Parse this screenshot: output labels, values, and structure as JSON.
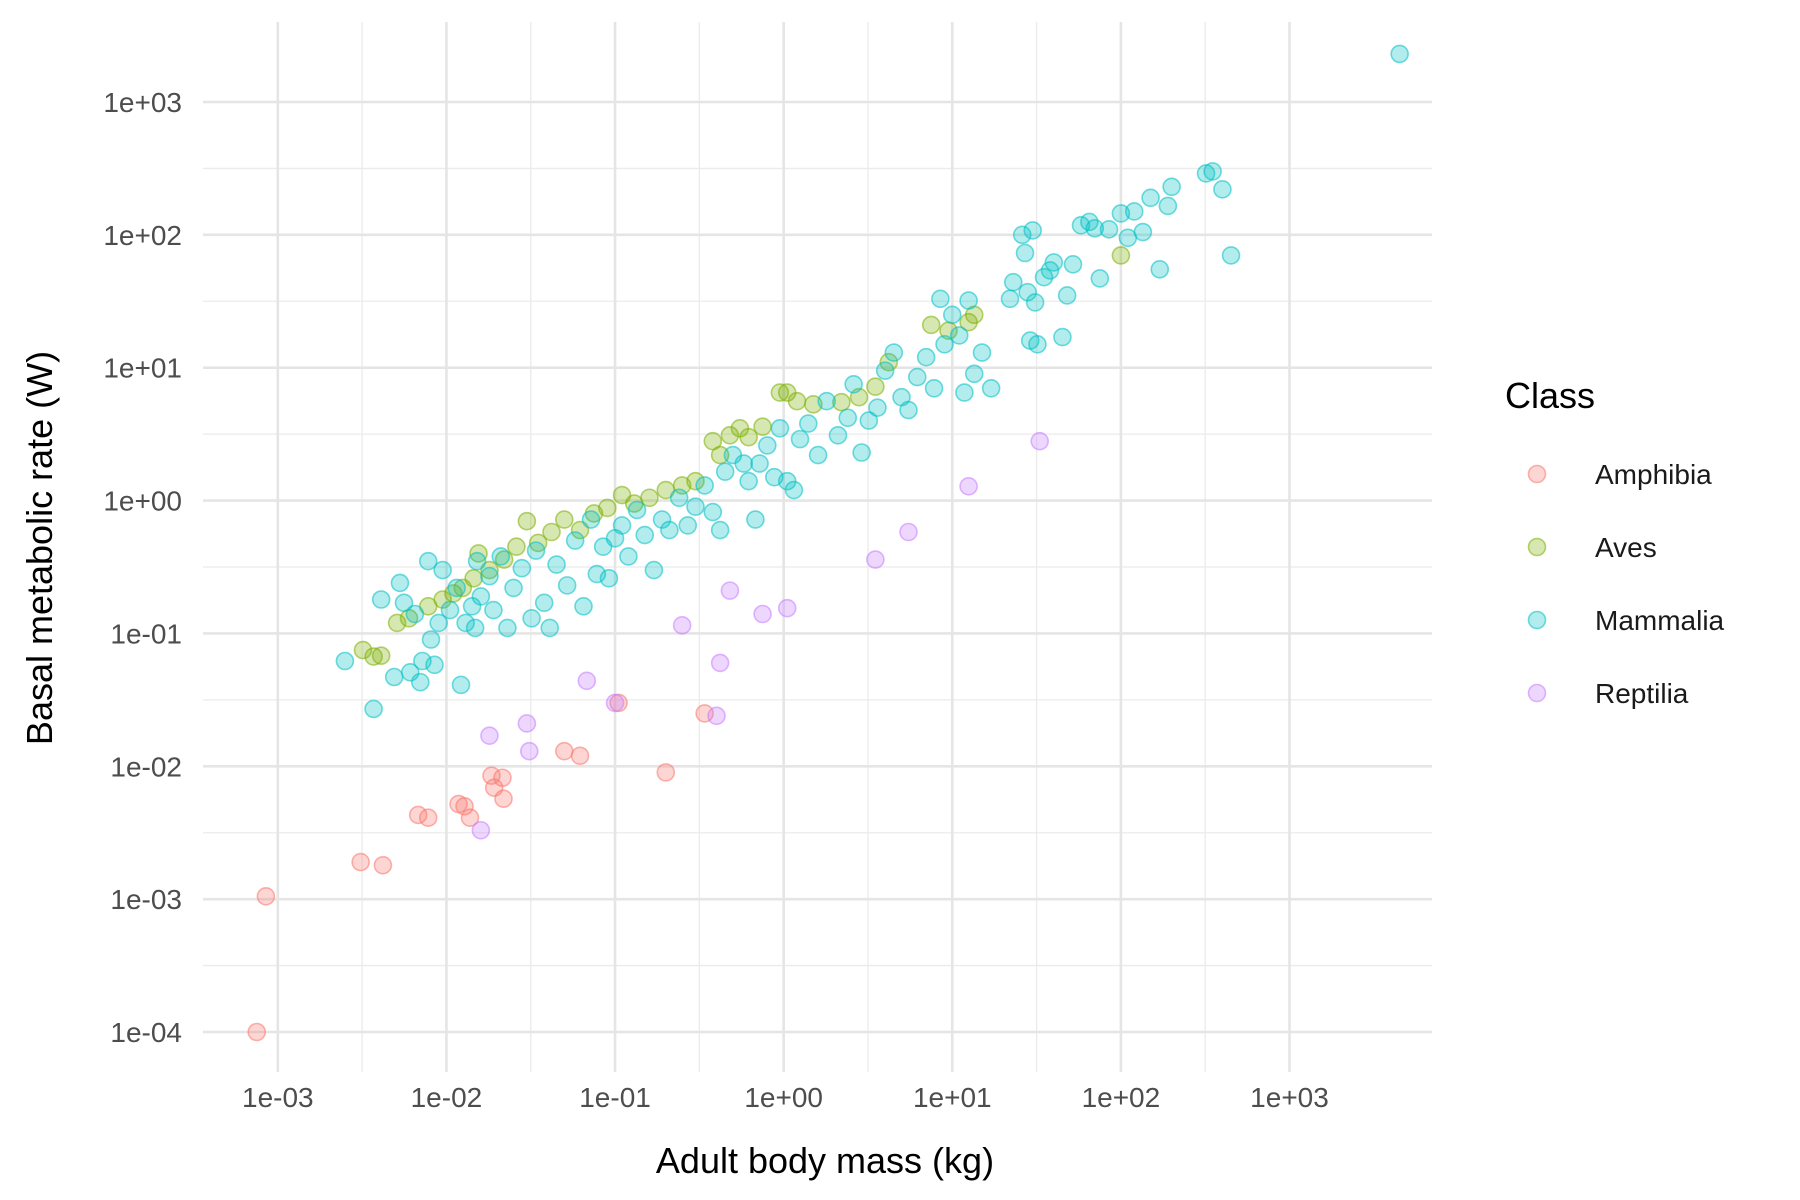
{
  "chart_data": {
    "type": "scatter",
    "title": "",
    "xlabel": "Adult body mass (kg)",
    "ylabel": "Basal metabolic rate (W)",
    "x_scale": "log10",
    "y_scale": "log10",
    "xlim": [
      0.00036,
      7000
    ],
    "ylim": [
      5e-05,
      4000
    ],
    "x_ticks": [
      0.001,
      0.01,
      0.1,
      1,
      10,
      100,
      1000
    ],
    "x_tick_labels": [
      "1e-03",
      "1e-02",
      "1e-01",
      "1e+00",
      "1e+01",
      "1e+02",
      "1e+03"
    ],
    "y_ticks": [
      0.0001,
      0.001,
      0.01,
      0.1,
      1,
      10,
      100,
      1000
    ],
    "y_tick_labels": [
      "1e-04",
      "1e-03",
      "1e-02",
      "1e-01",
      "1e+00",
      "1e+01",
      "1e+02",
      "1e+03"
    ],
    "grid": true,
    "legend": {
      "title": "Class",
      "position": "right"
    },
    "series": [
      {
        "name": "Amphibia",
        "color": "#F8766D",
        "points": [
          [
            0.00075,
            0.0001
          ],
          [
            0.00085,
            0.00105
          ],
          [
            0.0031,
            0.0019
          ],
          [
            0.0042,
            0.0018
          ],
          [
            0.0068,
            0.0043
          ],
          [
            0.0078,
            0.0041
          ],
          [
            0.0118,
            0.0052
          ],
          [
            0.0128,
            0.005
          ],
          [
            0.0138,
            0.0041
          ],
          [
            0.0185,
            0.0085
          ],
          [
            0.0192,
            0.0069
          ],
          [
            0.0215,
            0.0082
          ],
          [
            0.0218,
            0.0057
          ],
          [
            0.05,
            0.013
          ],
          [
            0.062,
            0.012
          ],
          [
            0.105,
            0.03
          ],
          [
            0.2,
            0.009
          ],
          [
            0.34,
            0.025
          ]
        ]
      },
      {
        "name": "Aves",
        "color": "#7CAE00",
        "points": [
          [
            0.0032,
            0.075
          ],
          [
            0.0037,
            0.067
          ],
          [
            0.0041,
            0.068
          ],
          [
            0.0051,
            0.12
          ],
          [
            0.006,
            0.13
          ],
          [
            0.0078,
            0.16
          ],
          [
            0.0095,
            0.18
          ],
          [
            0.011,
            0.2
          ],
          [
            0.0125,
            0.22
          ],
          [
            0.0145,
            0.26
          ],
          [
            0.0155,
            0.4
          ],
          [
            0.018,
            0.3
          ],
          [
            0.022,
            0.36
          ],
          [
            0.026,
            0.45
          ],
          [
            0.03,
            0.7
          ],
          [
            0.035,
            0.48
          ],
          [
            0.042,
            0.58
          ],
          [
            0.05,
            0.72
          ],
          [
            0.062,
            0.6
          ],
          [
            0.075,
            0.8
          ],
          [
            0.09,
            0.88
          ],
          [
            0.11,
            1.1
          ],
          [
            0.13,
            0.95
          ],
          [
            0.16,
            1.05
          ],
          [
            0.2,
            1.2
          ],
          [
            0.25,
            1.3
          ],
          [
            0.3,
            1.4
          ],
          [
            0.38,
            2.8
          ],
          [
            0.42,
            2.2
          ],
          [
            0.48,
            3.1
          ],
          [
            0.55,
            3.5
          ],
          [
            0.62,
            3.0
          ],
          [
            0.75,
            3.6
          ],
          [
            0.95,
            6.5
          ],
          [
            1.05,
            6.5
          ],
          [
            1.2,
            5.6
          ],
          [
            1.5,
            5.3
          ],
          [
            2.2,
            5.5
          ],
          [
            2.8,
            6.0
          ],
          [
            3.5,
            7.2
          ],
          [
            4.2,
            11.0
          ],
          [
            7.5,
            21.0
          ],
          [
            9.5,
            19.0
          ],
          [
            12.5,
            22.0
          ],
          [
            13.5,
            25.0
          ],
          [
            100,
            70
          ]
        ]
      },
      {
        "name": "Mammalia",
        "color": "#00BFC4",
        "points": [
          [
            0.0025,
            0.062
          ],
          [
            0.0037,
            0.027
          ],
          [
            0.0041,
            0.18
          ],
          [
            0.0049,
            0.047
          ],
          [
            0.0053,
            0.24
          ],
          [
            0.0056,
            0.17
          ],
          [
            0.0061,
            0.051
          ],
          [
            0.0065,
            0.14
          ],
          [
            0.007,
            0.043
          ],
          [
            0.0072,
            0.062
          ],
          [
            0.0078,
            0.35
          ],
          [
            0.0081,
            0.09
          ],
          [
            0.0085,
            0.058
          ],
          [
            0.009,
            0.12
          ],
          [
            0.0095,
            0.3
          ],
          [
            0.0105,
            0.15
          ],
          [
            0.0115,
            0.22
          ],
          [
            0.0122,
            0.041
          ],
          [
            0.013,
            0.12
          ],
          [
            0.0142,
            0.16
          ],
          [
            0.0148,
            0.11
          ],
          [
            0.0152,
            0.35
          ],
          [
            0.016,
            0.19
          ],
          [
            0.018,
            0.27
          ],
          [
            0.019,
            0.15
          ],
          [
            0.021,
            0.38
          ],
          [
            0.023,
            0.11
          ],
          [
            0.025,
            0.22
          ],
          [
            0.028,
            0.31
          ],
          [
            0.032,
            0.13
          ],
          [
            0.034,
            0.42
          ],
          [
            0.038,
            0.17
          ],
          [
            0.041,
            0.11
          ],
          [
            0.045,
            0.33
          ],
          [
            0.052,
            0.23
          ],
          [
            0.058,
            0.5
          ],
          [
            0.065,
            0.16
          ],
          [
            0.072,
            0.72
          ],
          [
            0.078,
            0.28
          ],
          [
            0.085,
            0.45
          ],
          [
            0.092,
            0.26
          ],
          [
            0.1,
            0.52
          ],
          [
            0.11,
            0.65
          ],
          [
            0.12,
            0.38
          ],
          [
            0.135,
            0.85
          ],
          [
            0.15,
            0.55
          ],
          [
            0.17,
            0.3
          ],
          [
            0.19,
            0.72
          ],
          [
            0.21,
            0.6
          ],
          [
            0.24,
            1.05
          ],
          [
            0.27,
            0.65
          ],
          [
            0.3,
            0.9
          ],
          [
            0.34,
            1.3
          ],
          [
            0.38,
            0.82
          ],
          [
            0.42,
            0.6
          ],
          [
            0.45,
            1.65
          ],
          [
            0.5,
            2.2
          ],
          [
            0.58,
            1.9
          ],
          [
            0.62,
            1.4
          ],
          [
            0.68,
            0.72
          ],
          [
            0.72,
            1.9
          ],
          [
            0.8,
            2.6
          ],
          [
            0.88,
            1.5
          ],
          [
            0.95,
            3.5
          ],
          [
            1.05,
            1.4
          ],
          [
            1.15,
            1.2
          ],
          [
            1.25,
            2.9
          ],
          [
            1.4,
            3.8
          ],
          [
            1.6,
            2.2
          ],
          [
            1.8,
            5.6
          ],
          [
            2.1,
            3.1
          ],
          [
            2.4,
            4.2
          ],
          [
            2.6,
            7.5
          ],
          [
            2.9,
            2.3
          ],
          [
            3.2,
            4.0
          ],
          [
            3.6,
            5.0
          ],
          [
            4.0,
            9.5
          ],
          [
            4.5,
            13.0
          ],
          [
            5.0,
            6.0
          ],
          [
            5.5,
            4.8
          ],
          [
            6.2,
            8.5
          ],
          [
            7.0,
            12.0
          ],
          [
            7.8,
            7.0
          ],
          [
            8.5,
            33.0
          ],
          [
            9.0,
            15.0
          ],
          [
            10.0,
            25.0
          ],
          [
            11.0,
            17.5
          ],
          [
            11.8,
            6.5
          ],
          [
            12.5,
            32.0
          ],
          [
            13.5,
            9.0
          ],
          [
            15.0,
            13.0
          ],
          [
            17.0,
            7.0
          ],
          [
            22.0,
            33.0
          ],
          [
            23.0,
            44.0
          ],
          [
            26.0,
            100.0
          ],
          [
            27.0,
            73.0
          ],
          [
            28.0,
            37.0
          ],
          [
            29.0,
            16.0
          ],
          [
            30.0,
            108.0
          ],
          [
            31.0,
            31.0
          ],
          [
            32.0,
            15.0
          ],
          [
            35.0,
            48.0
          ],
          [
            38.0,
            54.0
          ],
          [
            40.0,
            62.0
          ],
          [
            45.0,
            17.0
          ],
          [
            48.0,
            35.0
          ],
          [
            52.0,
            60.0
          ],
          [
            58.0,
            118.0
          ],
          [
            65.0,
            125.0
          ],
          [
            70.0,
            112.0
          ],
          [
            75.0,
            47.0
          ],
          [
            85.0,
            110.0
          ],
          [
            100.0,
            145.0
          ],
          [
            110.0,
            95.0
          ],
          [
            120.0,
            150.0
          ],
          [
            135.0,
            105.0
          ],
          [
            150.0,
            190.0
          ],
          [
            170.0,
            55.0
          ],
          [
            190.0,
            165.0
          ],
          [
            200.0,
            230.0
          ],
          [
            320.0,
            290.0
          ],
          [
            350.0,
            300.0
          ],
          [
            400.0,
            220.0
          ],
          [
            450.0,
            70.0
          ],
          [
            4500.0,
            2300.0
          ]
        ]
      },
      {
        "name": "Reptilia",
        "color": "#C77CFF",
        "points": [
          [
            0.016,
            0.0033
          ],
          [
            0.018,
            0.017
          ],
          [
            0.03,
            0.021
          ],
          [
            0.031,
            0.013
          ],
          [
            0.068,
            0.044
          ],
          [
            0.1,
            0.03
          ],
          [
            0.25,
            0.115
          ],
          [
            0.4,
            0.024
          ],
          [
            0.42,
            0.06
          ],
          [
            0.48,
            0.21
          ],
          [
            0.75,
            0.14
          ],
          [
            1.05,
            0.155
          ],
          [
            3.5,
            0.36
          ],
          [
            5.5,
            0.58
          ],
          [
            12.5,
            1.28
          ],
          [
            33.0,
            2.8
          ]
        ]
      }
    ]
  }
}
